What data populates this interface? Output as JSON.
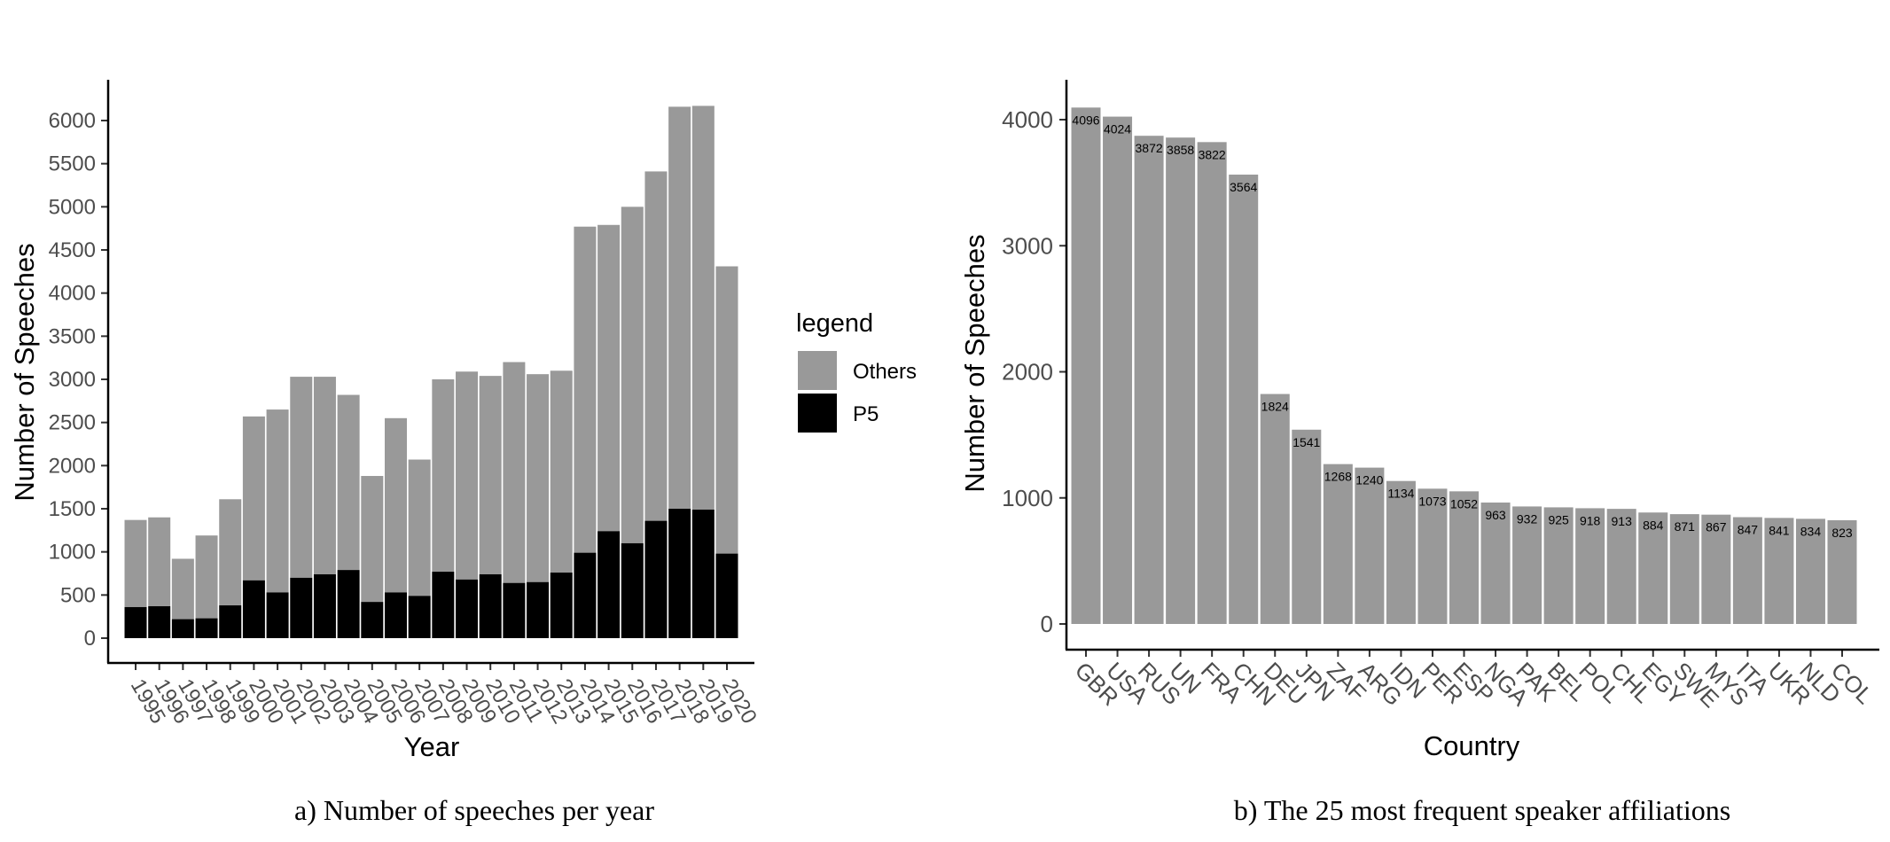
{
  "colors": {
    "others": "#999999",
    "p5": "#000000",
    "bar": "#999999",
    "axis": "#000000"
  },
  "chart_data": [
    {
      "type": "bar",
      "stacked": true,
      "caption": "a) Number of speeches per year",
      "xlabel": "Year",
      "ylabel": "Number of Speeches",
      "ylim": [
        0,
        6200
      ],
      "yticks": [
        0,
        500,
        1000,
        1500,
        2000,
        2500,
        3000,
        3500,
        4000,
        4500,
        5000,
        5500,
        6000
      ],
      "legend": {
        "title": "legend",
        "placement": "right",
        "entries": [
          "Others",
          "P5"
        ]
      },
      "categories": [
        "1995",
        "1996",
        "1997",
        "1998",
        "1999",
        "2000",
        "2001",
        "2002",
        "2003",
        "2004",
        "2005",
        "2006",
        "2007",
        "2008",
        "2009",
        "2010",
        "2011",
        "2012",
        "2013",
        "2014",
        "2015",
        "2016",
        "2017",
        "2018",
        "2019",
        "2020"
      ],
      "series": [
        {
          "name": "P5",
          "values": [
            360,
            370,
            220,
            230,
            380,
            670,
            530,
            700,
            740,
            790,
            420,
            530,
            490,
            770,
            680,
            740,
            640,
            650,
            760,
            990,
            1240,
            1100,
            1360,
            1500,
            1490,
            980
          ]
        },
        {
          "name": "Others",
          "values": [
            1010,
            1030,
            700,
            960,
            1230,
            1900,
            2120,
            2330,
            2290,
            2030,
            1460,
            2020,
            1580,
            2230,
            2410,
            2300,
            2560,
            2410,
            2340,
            3780,
            3550,
            3900,
            4050,
            4660,
            4680,
            3330
          ]
        }
      ]
    },
    {
      "type": "bar",
      "caption": "b) The 25 most frequent speaker affiliations",
      "xlabel": "Country",
      "ylabel": "Number of Speeches",
      "ylim": [
        0,
        4300
      ],
      "yticks": [
        0,
        1000,
        2000,
        3000,
        4000
      ],
      "categories": [
        "GBR",
        "USA",
        "RUS",
        "UN",
        "FRA",
        "CHN",
        "DEU",
        "JPN",
        "ZAF",
        "ARG",
        "IDN",
        "PER",
        "ESP",
        "NGA",
        "PAK",
        "BEL",
        "POL",
        "CHL",
        "EGY",
        "SWE",
        "MYS",
        "ITA",
        "UKR",
        "NLD",
        "COL"
      ],
      "values": [
        4096,
        4024,
        3872,
        3858,
        3822,
        3564,
        1824,
        1541,
        1268,
        1240,
        1134,
        1073,
        1052,
        963,
        932,
        925,
        918,
        913,
        884,
        871,
        867,
        847,
        841,
        834,
        823
      ]
    }
  ]
}
